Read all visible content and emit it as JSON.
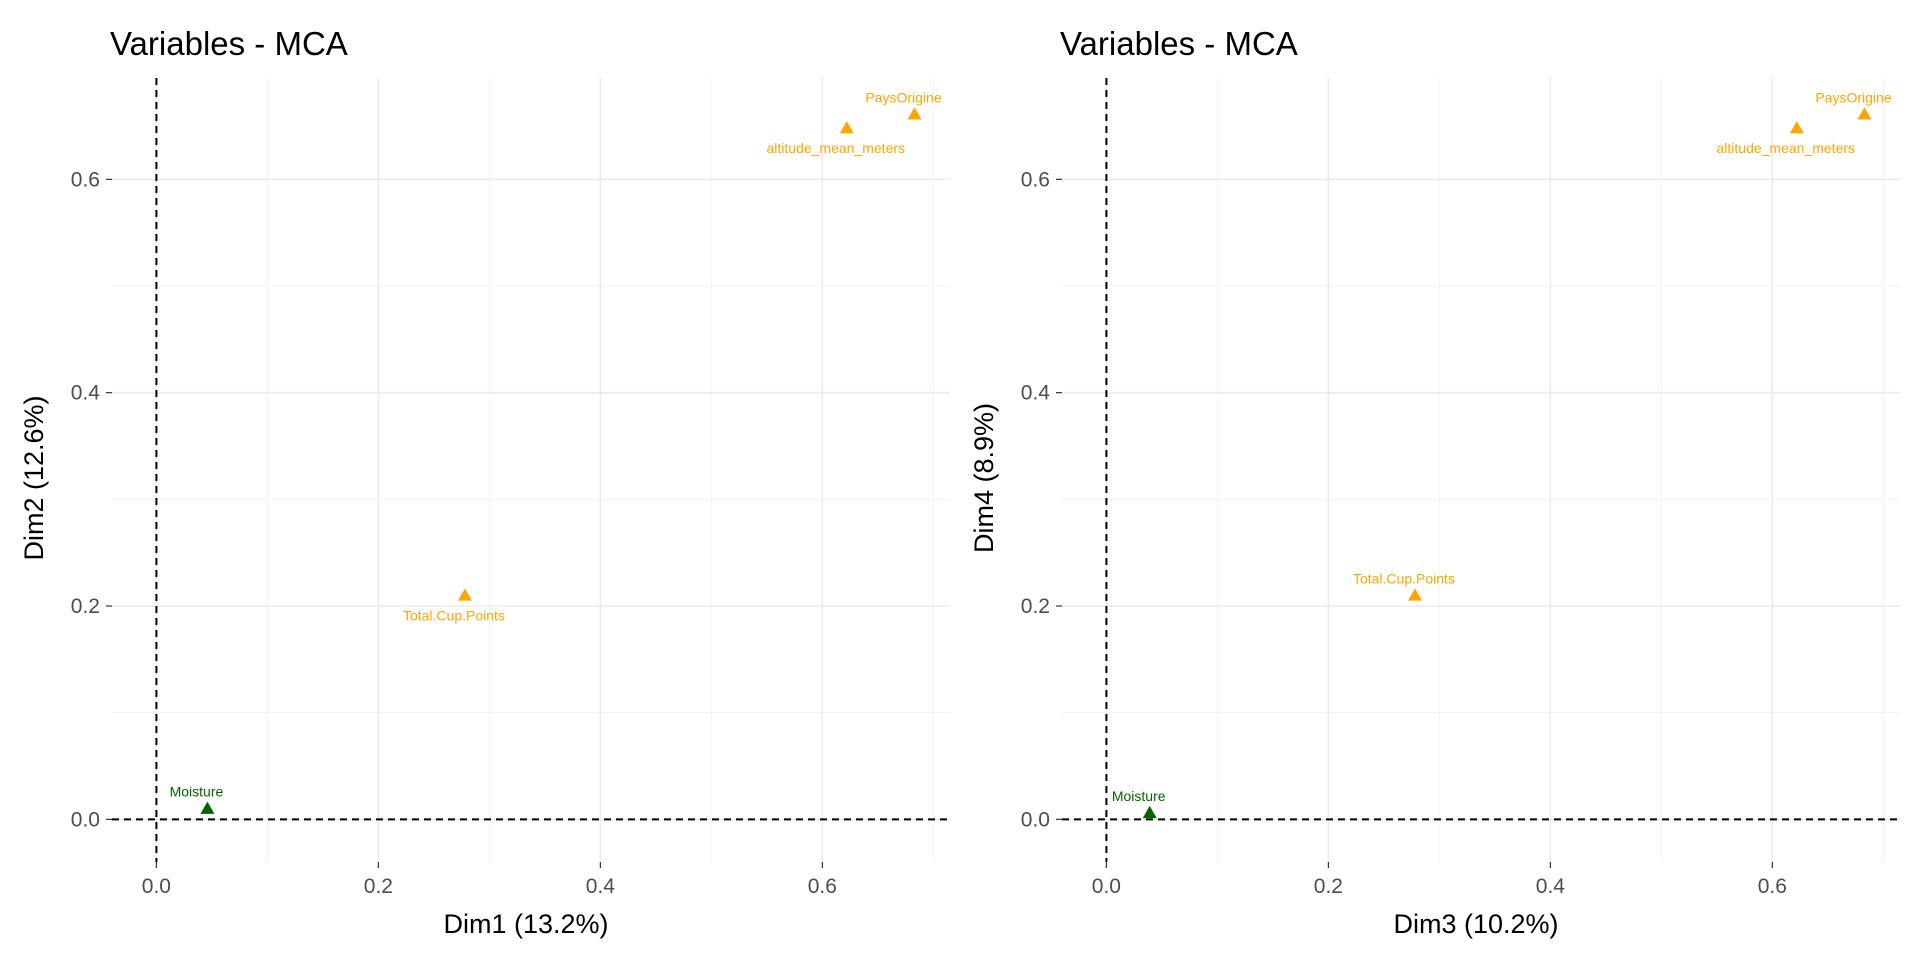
{
  "chart_data": [
    {
      "type": "scatter",
      "title": "Variables - MCA",
      "xlabel": "Dim1 (13.2%)",
      "ylabel": "Dim2 (12.6%)",
      "xlim": [
        -0.04,
        0.715
      ],
      "ylim": [
        -0.04,
        0.695
      ],
      "xticks": [
        0.0,
        0.2,
        0.4,
        0.6
      ],
      "yticks": [
        0.0,
        0.2,
        0.4,
        0.6
      ],
      "tick_labels_x": [
        "0.0",
        "0.2",
        "0.4",
        "0.6"
      ],
      "tick_labels_y": [
        "0.0",
        "0.2",
        "0.4",
        "0.6"
      ],
      "grid": true,
      "reference_lines": {
        "x": 0,
        "y": 0
      },
      "points": [
        {
          "label": "PaysOrigine",
          "x": 0.683,
          "y": 0.661,
          "color": "#FFA500",
          "label_pos": "above"
        },
        {
          "label": "altitude_mean_meters",
          "x": 0.622,
          "y": 0.648,
          "color": "#FFA500",
          "label_pos": "below"
        },
        {
          "label": "Total.Cup.Points",
          "x": 0.278,
          "y": 0.21,
          "color": "#FFA500",
          "label_pos": "below"
        },
        {
          "label": "Moisture",
          "x": 0.046,
          "y": 0.01,
          "color": "#006400",
          "label_pos": "above"
        }
      ]
    },
    {
      "type": "scatter",
      "title": "Variables - MCA",
      "xlabel": "Dim3 (10.2%)",
      "ylabel": "Dim4 (8.9%)",
      "xlim": [
        -0.04,
        0.715
      ],
      "ylim": [
        -0.04,
        0.695
      ],
      "xticks": [
        0.0,
        0.2,
        0.4,
        0.6
      ],
      "yticks": [
        0.0,
        0.2,
        0.4,
        0.6
      ],
      "tick_labels_x": [
        "0.0",
        "0.2",
        "0.4",
        "0.6"
      ],
      "tick_labels_y": [
        "0.0",
        "0.2",
        "0.4",
        "0.6"
      ],
      "grid": true,
      "reference_lines": {
        "x": 0,
        "y": 0
      },
      "points": [
        {
          "label": "PaysOrigine",
          "x": 0.683,
          "y": 0.661,
          "color": "#FFA500",
          "label_pos": "above"
        },
        {
          "label": "altitude_mean_meters",
          "x": 0.622,
          "y": 0.648,
          "color": "#FFA500",
          "label_pos": "below"
        },
        {
          "label": "Total.Cup.Points",
          "x": 0.278,
          "y": 0.21,
          "color": "#FFA500",
          "label_pos": "above"
        },
        {
          "label": "Moisture",
          "x": 0.039,
          "y": 0.006,
          "color": "#006400",
          "label_pos": "above"
        }
      ]
    }
  ]
}
